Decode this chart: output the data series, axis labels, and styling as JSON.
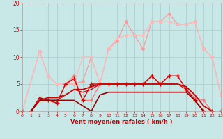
{
  "xlabel": "Vent moyen/en rafales ( km/h )",
  "xlim": [
    0,
    23
  ],
  "ylim": [
    0,
    20
  ],
  "yticks": [
    0,
    5,
    10,
    15,
    20
  ],
  "xticks": [
    0,
    1,
    2,
    3,
    4,
    5,
    6,
    7,
    8,
    9,
    10,
    11,
    12,
    13,
    14,
    15,
    16,
    17,
    18,
    19,
    20,
    21,
    22,
    23
  ],
  "background_color": "#c8e8e8",
  "grid_color": "#aacccc",
  "lines": [
    {
      "x": [
        0,
        2,
        3,
        4,
        5,
        6,
        7,
        8,
        9,
        10,
        11,
        12,
        13,
        14,
        15,
        16,
        17,
        18,
        19,
        20,
        21,
        22,
        23
      ],
      "y": [
        0,
        11,
        6.5,
        5,
        5,
        5,
        5.5,
        10,
        5,
        11.5,
        13,
        16.5,
        14,
        11.5,
        16.5,
        16.5,
        18,
        16,
        16,
        16.5,
        11.5,
        10,
        3
      ],
      "color": "#ff9999",
      "lw": 0.9,
      "marker": "o",
      "ms": 2.5,
      "alpha": 1.0
    },
    {
      "x": [
        0,
        2,
        3,
        4,
        5,
        6,
        7,
        8,
        9,
        10,
        11,
        12,
        13,
        14,
        15,
        16,
        17,
        18,
        19,
        20,
        21,
        22,
        23
      ],
      "y": [
        0,
        11,
        6.5,
        5,
        5,
        5,
        10,
        10,
        5,
        11.5,
        13.5,
        14,
        14,
        14,
        16.5,
        16.5,
        16.5,
        16,
        16,
        16.5,
        11.5,
        10,
        3
      ],
      "color": "#ffbbbb",
      "lw": 0.9,
      "marker": "o",
      "ms": 2.0,
      "alpha": 1.0
    },
    {
      "x": [
        0,
        1,
        2,
        3,
        4,
        5,
        6,
        7,
        8,
        9,
        10,
        11,
        12,
        13,
        14,
        15,
        16,
        17,
        18,
        19,
        20,
        21,
        22,
        23
      ],
      "y": [
        0,
        0,
        2,
        2,
        1.5,
        5,
        6.5,
        2,
        2,
        5,
        5,
        5,
        5,
        5,
        5,
        6.5,
        5,
        6.5,
        6.5,
        4,
        2.5,
        2,
        0,
        0
      ],
      "color": "#ff7777",
      "lw": 0.9,
      "marker": "o",
      "ms": 2.0,
      "alpha": 1.0
    },
    {
      "x": [
        0,
        1,
        2,
        3,
        4,
        5,
        6,
        7,
        8,
        9,
        10,
        11,
        12,
        13,
        14,
        15,
        16,
        17,
        18,
        19,
        20,
        21,
        22,
        23
      ],
      "y": [
        0,
        0,
        2,
        2.5,
        2.5,
        3,
        4,
        4,
        4.5,
        5,
        5,
        5,
        5,
        5,
        5,
        5,
        5,
        5,
        5,
        4.5,
        3,
        1,
        0,
        0
      ],
      "color": "#cc0000",
      "lw": 1.3,
      "marker": null,
      "ms": 0,
      "alpha": 1.0
    },
    {
      "x": [
        0,
        1,
        2,
        3,
        4,
        5,
        6,
        7,
        8,
        9,
        10,
        11,
        12,
        13,
        14,
        15,
        16,
        17,
        18,
        19,
        20,
        21,
        22,
        23
      ],
      "y": [
        0,
        0,
        2,
        2,
        2,
        3,
        4,
        3.5,
        4,
        5,
        5,
        5,
        5,
        5,
        5,
        5,
        5,
        5,
        5,
        4,
        2,
        0,
        0,
        0
      ],
      "color": "#cc1111",
      "lw": 1.0,
      "marker": null,
      "ms": 0,
      "alpha": 1.0
    },
    {
      "x": [
        0,
        1,
        2,
        3,
        4,
        5,
        6,
        7,
        8,
        9,
        10,
        11,
        12,
        13,
        14,
        15,
        16,
        17,
        18,
        19,
        20,
        21,
        22,
        23
      ],
      "y": [
        0,
        0,
        2.5,
        2,
        1.5,
        5,
        6,
        2,
        5,
        5,
        5,
        5,
        5,
        5,
        5,
        6.5,
        5,
        6.5,
        6.5,
        4,
        2,
        0,
        0,
        0
      ],
      "color": "#dd0000",
      "lw": 1.0,
      "marker": "+",
      "ms": 4,
      "alpha": 1.0
    },
    {
      "x": [
        0,
        1,
        2,
        3,
        4,
        5,
        6,
        7,
        8,
        9,
        10,
        11,
        12,
        13,
        14,
        15,
        16,
        17,
        18,
        19,
        20,
        21,
        22,
        23
      ],
      "y": [
        0,
        0,
        2,
        2,
        2,
        2,
        2,
        1,
        0,
        3,
        3.5,
        3.5,
        3.5,
        3.5,
        3.5,
        3.5,
        3.5,
        3.5,
        3.5,
        3.5,
        2,
        0,
        0,
        0
      ],
      "color": "#990000",
      "lw": 1.2,
      "marker": null,
      "ms": 0,
      "alpha": 1.0
    }
  ]
}
